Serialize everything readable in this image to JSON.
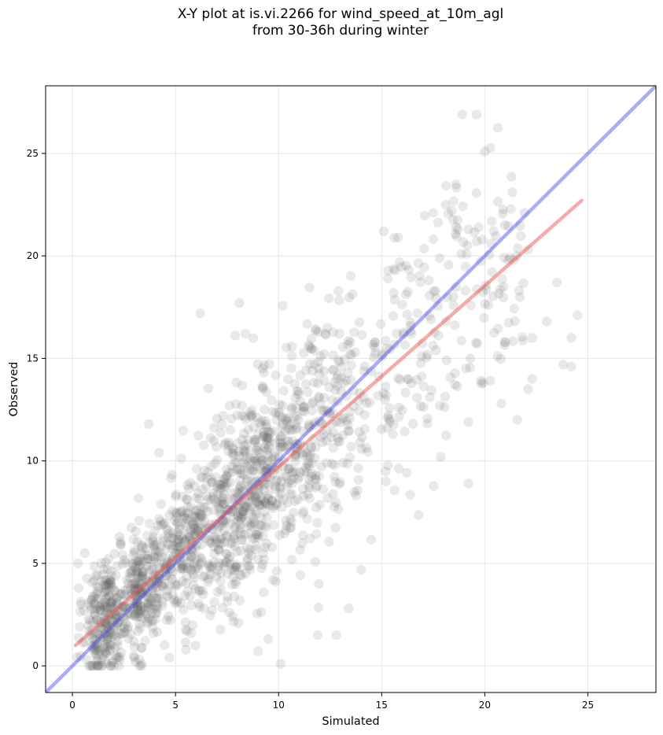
{
  "chart_data": {
    "type": "scatter",
    "title_lines": [
      "X-Y plot at is.vi.2266 for wind_speed_at_10m_agl",
      "from 30-36h during winter"
    ],
    "xlabel": "Simulated",
    "ylabel": "Observed",
    "xlim": [
      -1.3,
      28.3
    ],
    "ylim": [
      -1.3,
      28.3
    ],
    "xticks": [
      "0",
      "5",
      "10",
      "15",
      "20",
      "25"
    ],
    "yticks": [
      "0",
      "5",
      "10",
      "15",
      "20",
      "25"
    ],
    "grid": true,
    "point_color": "#555555",
    "point_count_approx": 1700,
    "identity_line": {
      "x": [
        -1.3,
        28.3
      ],
      "y": [
        -1.3,
        28.3
      ],
      "color": "#4444ee"
    },
    "fit_line": {
      "x": [
        0.15,
        24.7
      ],
      "y": [
        1.0,
        22.7
      ],
      "color": "#ee5555"
    },
    "sample_points": [
      [
        18.9,
        26.9
      ],
      [
        19.6,
        26.9
      ],
      [
        18.1,
        22.5
      ],
      [
        18.4,
        22.2
      ],
      [
        17.5,
        22.1
      ],
      [
        19.2,
        21.3
      ],
      [
        19.7,
        21.4
      ],
      [
        18.7,
        21.3
      ],
      [
        15.1,
        21.2
      ],
      [
        15.8,
        20.9
      ],
      [
        20.3,
        20.6
      ],
      [
        22.1,
        20.3
      ],
      [
        21.4,
        19.8
      ],
      [
        23.5,
        18.7
      ],
      [
        24.5,
        17.1
      ],
      [
        23.0,
        16.8
      ],
      [
        24.2,
        16.0
      ],
      [
        22.3,
        16.0
      ],
      [
        21.0,
        15.8
      ],
      [
        23.8,
        14.7
      ],
      [
        24.2,
        14.6
      ],
      [
        19.3,
        15.0
      ],
      [
        22.3,
        14.0
      ],
      [
        22.1,
        13.5
      ],
      [
        20.8,
        12.8
      ],
      [
        19.2,
        11.9
      ],
      [
        19.2,
        8.9
      ],
      [
        15.2,
        9.0
      ],
      [
        14.0,
        4.7
      ],
      [
        13.4,
        2.8
      ],
      [
        12.8,
        1.5
      ],
      [
        11.9,
        1.5
      ],
      [
        10.1,
        0.1
      ],
      [
        9.5,
        1.3
      ],
      [
        8.1,
        17.7
      ],
      [
        6.2,
        17.2
      ],
      [
        3.7,
        11.8
      ],
      [
        4.2,
        10.4
      ],
      [
        0.6,
        5.5
      ],
      [
        0.3,
        3.8
      ],
      [
        1.2,
        0.0
      ],
      [
        0.7,
        0.3
      ],
      [
        2.1,
        0.5
      ],
      [
        3.0,
        0.4
      ],
      [
        4.7,
        0.4
      ]
    ]
  }
}
